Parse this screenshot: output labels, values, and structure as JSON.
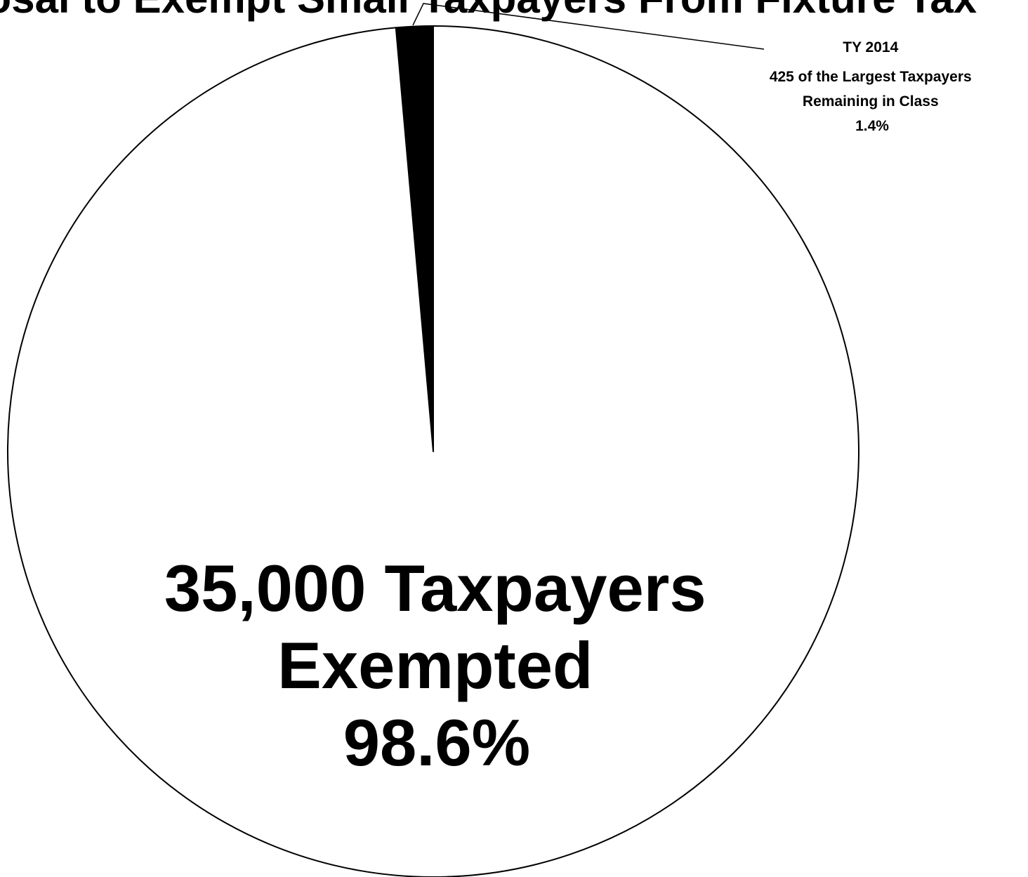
{
  "chart_data": {
    "type": "pie",
    "title": "Proposal to Exempt Small Taxpayers From Fixture Tax",
    "start_angle_deg": 0,
    "direction": "counterclockwise",
    "slices": [
      {
        "value": 1.4,
        "color": "#000000",
        "label_lines": [
          "TY 2014",
          "425  of the Largest Taxpayers",
          "Remaining in Class",
          "1.4%"
        ]
      },
      {
        "value": 98.6,
        "color": "#ffffff",
        "label_lines": [
          "35,000 Taxpayers",
          "Exempted",
          "98.6%"
        ]
      }
    ],
    "legend": "none"
  }
}
